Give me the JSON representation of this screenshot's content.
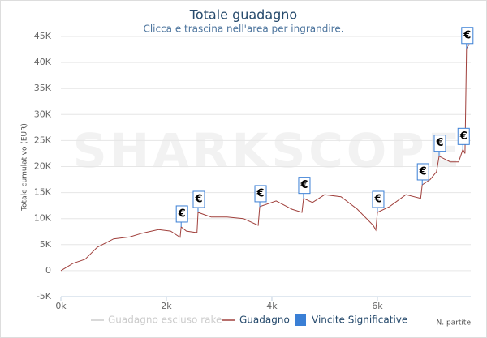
{
  "chart_data": {
    "type": "line",
    "title": "Totale guadagno",
    "subtitle": "Clicca e trascina nell'area per ingrandire.",
    "y_label": "Totale cumulativo (EUR)",
    "x_label": "N. partite",
    "watermark": "SHARKSCOPE",
    "xlim": [
      0,
      7770
    ],
    "ylim": [
      -5000,
      45000
    ],
    "xticks": [
      {
        "value": 0,
        "label": "0k"
      },
      {
        "value": 2000,
        "label": "2k"
      },
      {
        "value": 4000,
        "label": "4k"
      },
      {
        "value": 6000,
        "label": "6k"
      }
    ],
    "yticks": [
      {
        "value": -5000,
        "label": "-5K"
      },
      0,
      {
        "value": 5000,
        "label": "5K"
      },
      {
        "value": 10000,
        "label": "10K"
      },
      {
        "value": 15000,
        "label": "15K"
      },
      {
        "value": 20000,
        "label": "20K"
      },
      {
        "value": 25000,
        "label": "25K"
      },
      {
        "value": 30000,
        "label": "30K"
      },
      {
        "value": 35000,
        "label": "35K"
      },
      {
        "value": 40000,
        "label": "40K"
      },
      {
        "value": 45000,
        "label": "45K"
      }
    ],
    "grid": true,
    "series": [
      {
        "name": "Guadagno escluso rake",
        "color": "#cccccc",
        "visible": false
      },
      {
        "name": "Guadagno",
        "color": "#a0403c",
        "x": [
          0,
          230,
          460,
          690,
          1000,
          1310,
          1540,
          1850,
          2080,
          2260,
          2280,
          2380,
          2580,
          2600,
          2850,
          3150,
          3460,
          3740,
          3770,
          4080,
          4380,
          4570,
          4600,
          4770,
          5000,
          5310,
          5620,
          5920,
          5970,
          6000,
          6230,
          6540,
          6820,
          6850,
          7000,
          7120,
          7170,
          7380,
          7540,
          7620,
          7660,
          7690,
          7740
        ],
        "values": [
          0,
          1400,
          2200,
          4500,
          6100,
          6500,
          7200,
          7900,
          7600,
          6400,
          8400,
          7600,
          7300,
          11200,
          10300,
          10300,
          10000,
          8700,
          12300,
          13400,
          11800,
          11200,
          13900,
          13100,
          14600,
          14200,
          11800,
          8700,
          7800,
          11200,
          12300,
          14600,
          13900,
          16500,
          17500,
          19000,
          22000,
          20900,
          20900,
          23300,
          22500,
          42700,
          43500
        ]
      },
      {
        "name": "Vincite Significative",
        "color": "#3a7fd5",
        "marker_text": "€",
        "x": [
          2280,
          2600,
          3770,
          4600,
          6000,
          6850,
          7170,
          7620,
          7690
        ],
        "values": [
          8400,
          11200,
          12300,
          13900,
          11200,
          16500,
          22000,
          23300,
          42700
        ]
      }
    ]
  }
}
